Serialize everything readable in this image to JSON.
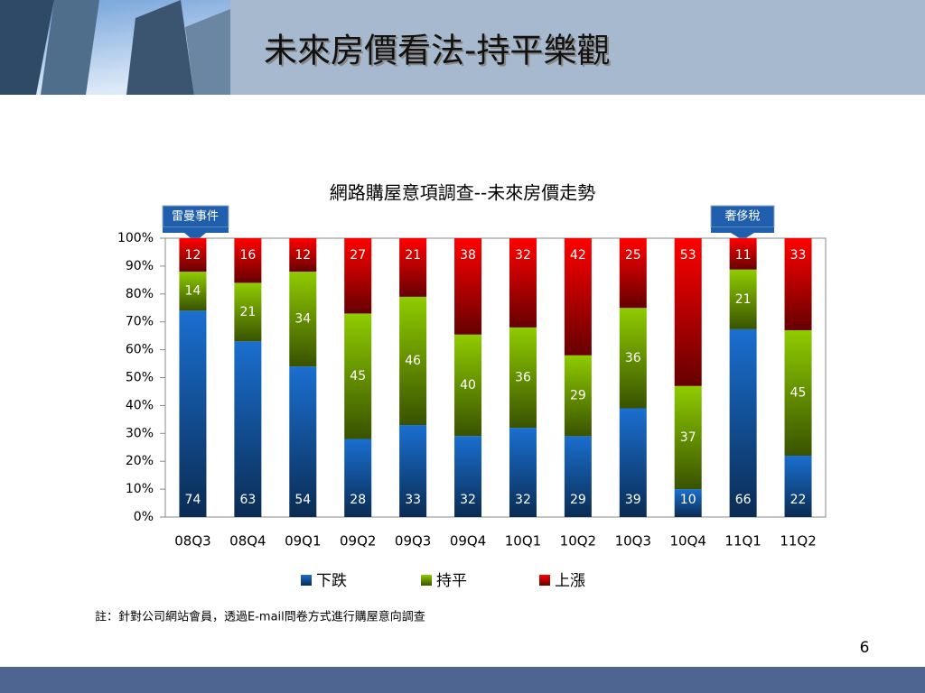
{
  "header": {
    "title": "未來房價看法-持平樂觀"
  },
  "chart_data": {
    "type": "bar",
    "stack": "percent",
    "title": "網路購屋意項調查--未來房價走勢",
    "categories": [
      "08Q3",
      "08Q4",
      "09Q1",
      "09Q2",
      "09Q3",
      "09Q4",
      "10Q1",
      "10Q2",
      "10Q3",
      "10Q4",
      "11Q1",
      "11Q2"
    ],
    "series": [
      {
        "name": "下跌",
        "color": "#1a6fd0",
        "values": [
          74,
          63,
          54,
          28,
          33,
          32,
          32,
          29,
          39,
          10,
          66,
          22
        ]
      },
      {
        "name": "持平",
        "color": "#8fcc00",
        "values": [
          14,
          21,
          34,
          45,
          46,
          40,
          36,
          29,
          36,
          37,
          21,
          45
        ]
      },
      {
        "name": "上漲",
        "color": "#ff0000",
        "values": [
          12,
          16,
          12,
          27,
          21,
          38,
          32,
          42,
          25,
          53,
          11,
          33
        ]
      }
    ],
    "ylim": [
      0,
      100
    ],
    "yticks": [
      {
        "value": 0,
        "label": "0%"
      },
      {
        "value": 10,
        "label": "10%"
      },
      {
        "value": 20,
        "label": "20%"
      },
      {
        "value": 30,
        "label": "30%"
      },
      {
        "value": 40,
        "label": "40%"
      },
      {
        "value": 50,
        "label": "50%"
      },
      {
        "value": 60,
        "label": "60%"
      },
      {
        "value": 70,
        "label": "70%"
      },
      {
        "value": 80,
        "label": "80%"
      },
      {
        "value": 90,
        "label": "90%"
      },
      {
        "value": 100,
        "label": "100%"
      }
    ],
    "annotations": [
      "雷曼事件",
      "奢侈稅"
    ],
    "legend": "bottom"
  },
  "note": "註：針對公司網站會員，透過E-mail問卷方式進行購屋意向調查",
  "page_number": "6"
}
